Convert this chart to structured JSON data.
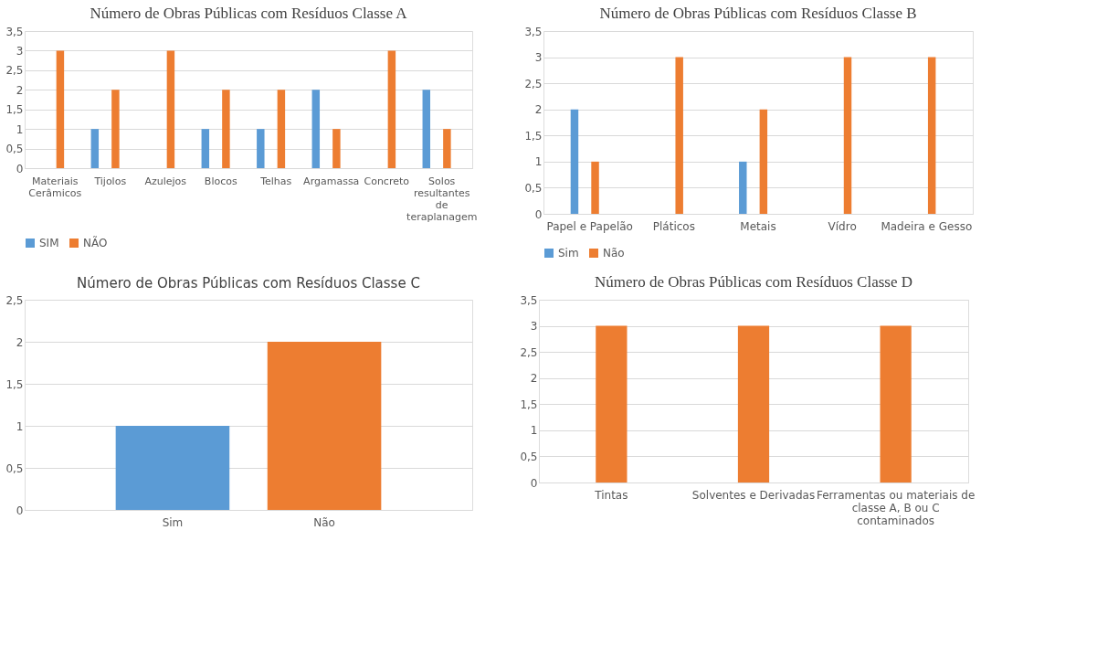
{
  "chart_data": [
    {
      "type": "bar",
      "title": "Número de Obras Públicas  com Resíduos  Classe A",
      "categories": [
        "Materiais Cerâmicos",
        "Tijolos",
        "Azulejos",
        "Blocos",
        "Telhas",
        "Argamassa",
        "Concreto",
        "Solos resultantes de teraplanagem"
      ],
      "series": [
        {
          "name": "SIM",
          "color": "#5b9bd5",
          "values": [
            0,
            1,
            0,
            1,
            1,
            2,
            0,
            2
          ]
        },
        {
          "name": "NÃO",
          "color": "#ed7d31",
          "values": [
            3,
            2,
            3,
            2,
            2,
            1,
            3,
            1
          ]
        }
      ],
      "ylim": [
        0,
        3.5
      ],
      "yticks": [
        0,
        {
          "value": 0.5,
          "label": "0,5"
        },
        1,
        {
          "value": 1.5,
          "label": "1,5"
        },
        2,
        {
          "value": 2.5,
          "label": "2,5"
        },
        3,
        {
          "value": 3.5,
          "label": "3,5"
        }
      ],
      "grid": "y",
      "legend": "bottom"
    },
    {
      "type": "bar",
      "title": "Número de Obras Públicas  com Resíduos  Classe B",
      "categories": [
        "Papel e Papelão",
        "Pláticos",
        "Metais",
        "Vídro",
        "Madeira e Gesso"
      ],
      "series": [
        {
          "name": "Sim",
          "color": "#5b9bd5",
          "values": [
            2,
            0,
            1,
            0,
            0
          ]
        },
        {
          "name": "Não",
          "color": "#ed7d31",
          "values": [
            1,
            3,
            2,
            3,
            3
          ]
        }
      ],
      "ylim": [
        0,
        3.5
      ],
      "yticks": [
        0,
        {
          "value": 0.5,
          "label": "0,5"
        },
        1,
        {
          "value": 1.5,
          "label": "1,5"
        },
        2,
        {
          "value": 2.5,
          "label": "2,5"
        },
        3,
        {
          "value": 3.5,
          "label": "3,5"
        }
      ],
      "grid": "y",
      "legend": "bottom"
    },
    {
      "type": "bar",
      "title": "Número  de Obras Públicas com Resíduos Classe C",
      "categories": [
        "Sim",
        "Não"
      ],
      "values": [
        1,
        2
      ],
      "colors": [
        "#5b9bd5",
        "#ed7d31"
      ],
      "ylim": [
        0,
        2.5
      ],
      "yticks": [
        0,
        {
          "value": 0.5,
          "label": "0,5"
        },
        1,
        {
          "value": 1.5,
          "label": "1,5"
        },
        2,
        {
          "value": 2.5,
          "label": "2,5"
        }
      ],
      "grid": "y"
    },
    {
      "type": "bar",
      "title": "Número de Obras Públicas com Resíduos Classe D",
      "categories": [
        "Tintas",
        "Solventes e Derivadas",
        "Ferramentas ou materiais de classe A, B ou C contaminados"
      ],
      "series": [
        {
          "color": "#ed7d31",
          "values": [
            3,
            3,
            3
          ]
        }
      ],
      "ylim": [
        0,
        3.5
      ],
      "yticks": [
        0,
        {
          "value": 0.5,
          "label": "0,5"
        },
        1,
        {
          "value": 1.5,
          "label": "1,5"
        },
        2,
        {
          "value": 2.5,
          "label": "2,5"
        },
        3,
        {
          "value": 3.5,
          "label": "3,5"
        }
      ],
      "grid": "y"
    }
  ]
}
